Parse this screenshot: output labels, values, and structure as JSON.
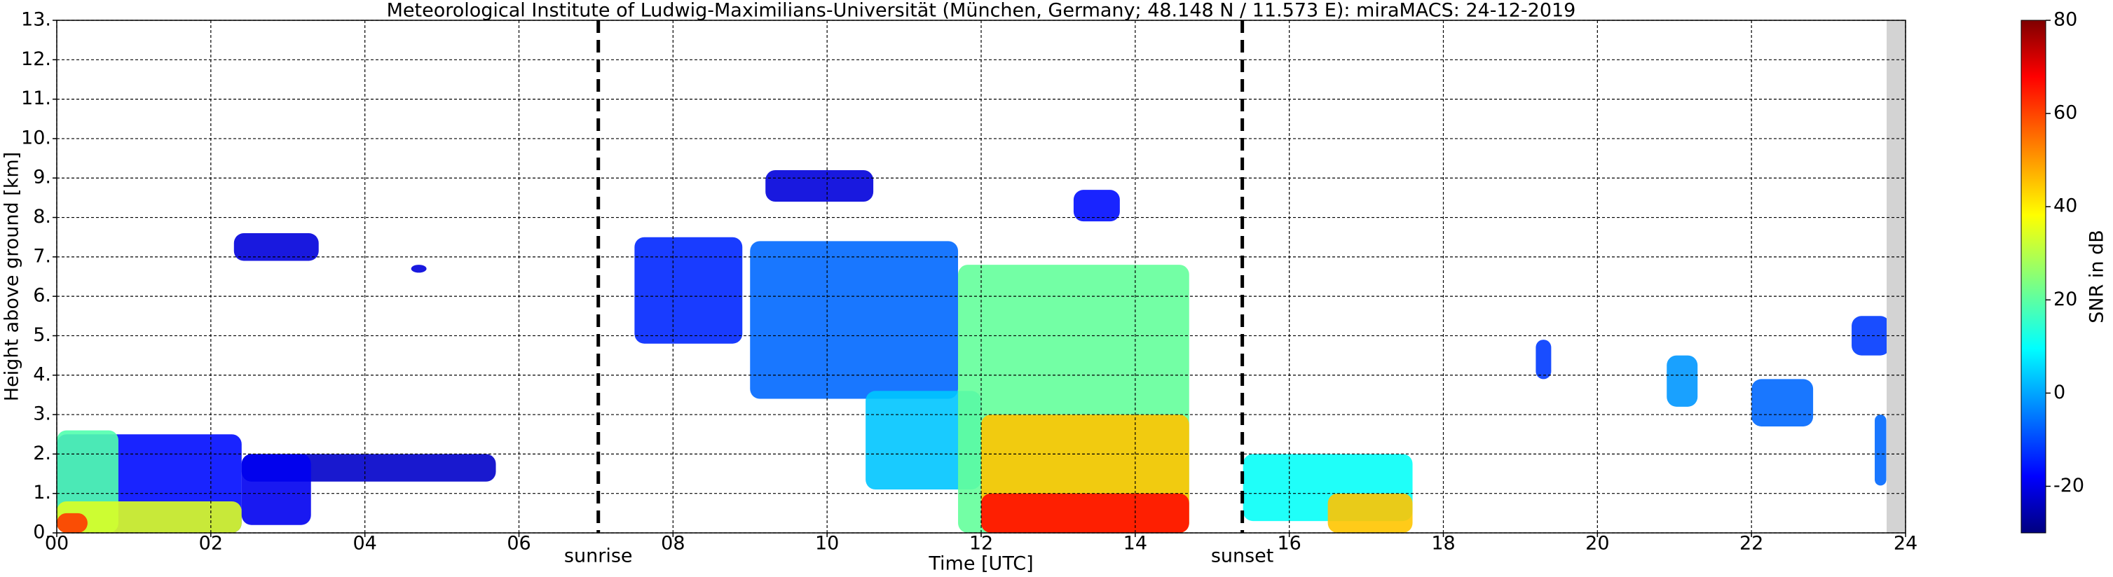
{
  "chart_data": {
    "type": "time-height",
    "title": "Meteorological Institute of Ludwig-Maximilians-Universität (München, Germany; 48.148 N / 11.573 E):    miraMACS: 24-12-2019",
    "x_label": "Time [UTC]",
    "y_label": "Height above ground [km]",
    "colorbar_label": "SNR in dB",
    "xlim": [
      0,
      24
    ],
    "xticks": [
      {
        "value": 0,
        "label": "00"
      },
      {
        "value": 2,
        "label": "02"
      },
      {
        "value": 4,
        "label": "04"
      },
      {
        "value": 6,
        "label": "06"
      },
      {
        "value": 8,
        "label": "08"
      },
      {
        "value": 10,
        "label": "10"
      },
      {
        "value": 12,
        "label": "12"
      },
      {
        "value": 14,
        "label": "14"
      },
      {
        "value": 16,
        "label": "16"
      },
      {
        "value": 18,
        "label": "18"
      },
      {
        "value": 20,
        "label": "20"
      },
      {
        "value": 22,
        "label": "22"
      },
      {
        "value": 24,
        "label": "24"
      }
    ],
    "ylim": [
      0,
      13
    ],
    "yticks": [
      {
        "value": 0,
        "label": "0."
      },
      {
        "value": 1,
        "label": "1."
      },
      {
        "value": 2,
        "label": "2."
      },
      {
        "value": 3,
        "label": "3."
      },
      {
        "value": 4,
        "label": "4."
      },
      {
        "value": 5,
        "label": "5."
      },
      {
        "value": 6,
        "label": "6."
      },
      {
        "value": 7,
        "label": "7."
      },
      {
        "value": 8,
        "label": "8."
      },
      {
        "value": 9,
        "label": "9."
      },
      {
        "value": 10,
        "label": "10."
      },
      {
        "value": 11,
        "label": "11."
      },
      {
        "value": 12,
        "label": "12."
      },
      {
        "value": 13,
        "label": "13."
      }
    ],
    "clim": [
      -30,
      80
    ],
    "cticks": [
      -20,
      0,
      20,
      40,
      60,
      80
    ],
    "grid": true,
    "markers": [
      {
        "x": 7.03,
        "label": "sunrise"
      },
      {
        "x": 15.39,
        "label": "sunset"
      }
    ],
    "regions": [
      {
        "x": [
          0,
          2.4
        ],
        "y": [
          0,
          2.5
        ],
        "snr": -15
      },
      {
        "x": [
          0,
          0.8
        ],
        "y": [
          0,
          2.6
        ],
        "snr": 20
      },
      {
        "x": [
          0,
          2.4
        ],
        "y": [
          0,
          0.8
        ],
        "snr": 35
      },
      {
        "x": [
          0,
          0.4
        ],
        "y": [
          0,
          0.5
        ],
        "snr": 60
      },
      {
        "x": [
          2.4,
          5.7
        ],
        "y": [
          1.3,
          2.0
        ],
        "snr": -22
      },
      {
        "x": [
          2.4,
          3.3
        ],
        "y": [
          0.2,
          2.0
        ],
        "snr": -18
      },
      {
        "x": [
          2.3,
          3.4
        ],
        "y": [
          6.9,
          7.6
        ],
        "snr": -20
      },
      {
        "x": [
          4.6,
          4.8
        ],
        "y": [
          6.6,
          6.8
        ],
        "snr": -20
      },
      {
        "x": [
          7.5,
          8.9
        ],
        "y": [
          4.8,
          7.5
        ],
        "snr": -12
      },
      {
        "x": [
          9.2,
          10.6
        ],
        "y": [
          8.4,
          9.2
        ],
        "snr": -20
      },
      {
        "x": [
          9.0,
          11.7
        ],
        "y": [
          3.4,
          7.4
        ],
        "snr": -5
      },
      {
        "x": [
          10.5,
          12.0
        ],
        "y": [
          1.1,
          3.6
        ],
        "snr": 5
      },
      {
        "x": [
          11.7,
          14.7
        ],
        "y": [
          0,
          6.8
        ],
        "snr": 22
      },
      {
        "x": [
          12.0,
          14.7
        ],
        "y": [
          0,
          3.0
        ],
        "snr": 45
      },
      {
        "x": [
          12.0,
          14.7
        ],
        "y": [
          0,
          1.0
        ],
        "snr": 65
      },
      {
        "x": [
          13.2,
          13.8
        ],
        "y": [
          7.9,
          8.7
        ],
        "snr": -15
      },
      {
        "x": [
          15.4,
          17.6
        ],
        "y": [
          0.3,
          2.0
        ],
        "snr": 12
      },
      {
        "x": [
          16.5,
          17.6
        ],
        "y": [
          0,
          1.0
        ],
        "snr": 45
      },
      {
        "x": [
          19.2,
          19.4
        ],
        "y": [
          3.9,
          4.9
        ],
        "snr": -10
      },
      {
        "x": [
          20.9,
          21.3
        ],
        "y": [
          3.2,
          4.5
        ],
        "snr": 0
      },
      {
        "x": [
          22.0,
          22.8
        ],
        "y": [
          2.7,
          3.9
        ],
        "snr": -5
      },
      {
        "x": [
          23.3,
          23.8
        ],
        "y": [
          4.5,
          5.5
        ],
        "snr": -10
      },
      {
        "x": [
          23.6,
          23.75
        ],
        "y": [
          1.2,
          3.0
        ],
        "snr": -5
      }
    ]
  }
}
